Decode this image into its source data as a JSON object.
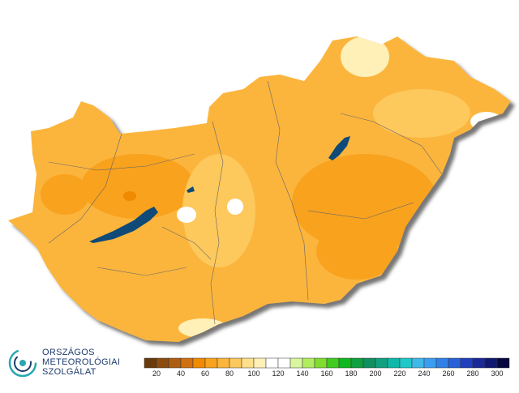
{
  "logo": {
    "lines": [
      "ORSZÁGOS",
      "METEOROLÓGIAI",
      "SZOLGÁLAT"
    ]
  },
  "legend": {
    "colors": [
      "#6a3a0c",
      "#8c4c10",
      "#ad5e12",
      "#d07010",
      "#f08a00",
      "#f8a21e",
      "#fbb53c",
      "#fdc85c",
      "#fee08a",
      "#fff0b8",
      "#ffffff",
      "#ffffff",
      "#d8f5a0",
      "#b0ec60",
      "#80dc30",
      "#40cc20",
      "#10b820",
      "#10a040",
      "#109060",
      "#10a080",
      "#10b8a8",
      "#20c8c8",
      "#40b8e8",
      "#3a9ef0",
      "#3080e8",
      "#2860d8",
      "#2040c0",
      "#1a2898",
      "#101870",
      "#080840"
    ],
    "ticks": [
      20,
      40,
      60,
      80,
      100,
      120,
      140,
      160,
      180,
      200,
      220,
      240,
      260,
      280,
      300
    ]
  }
}
